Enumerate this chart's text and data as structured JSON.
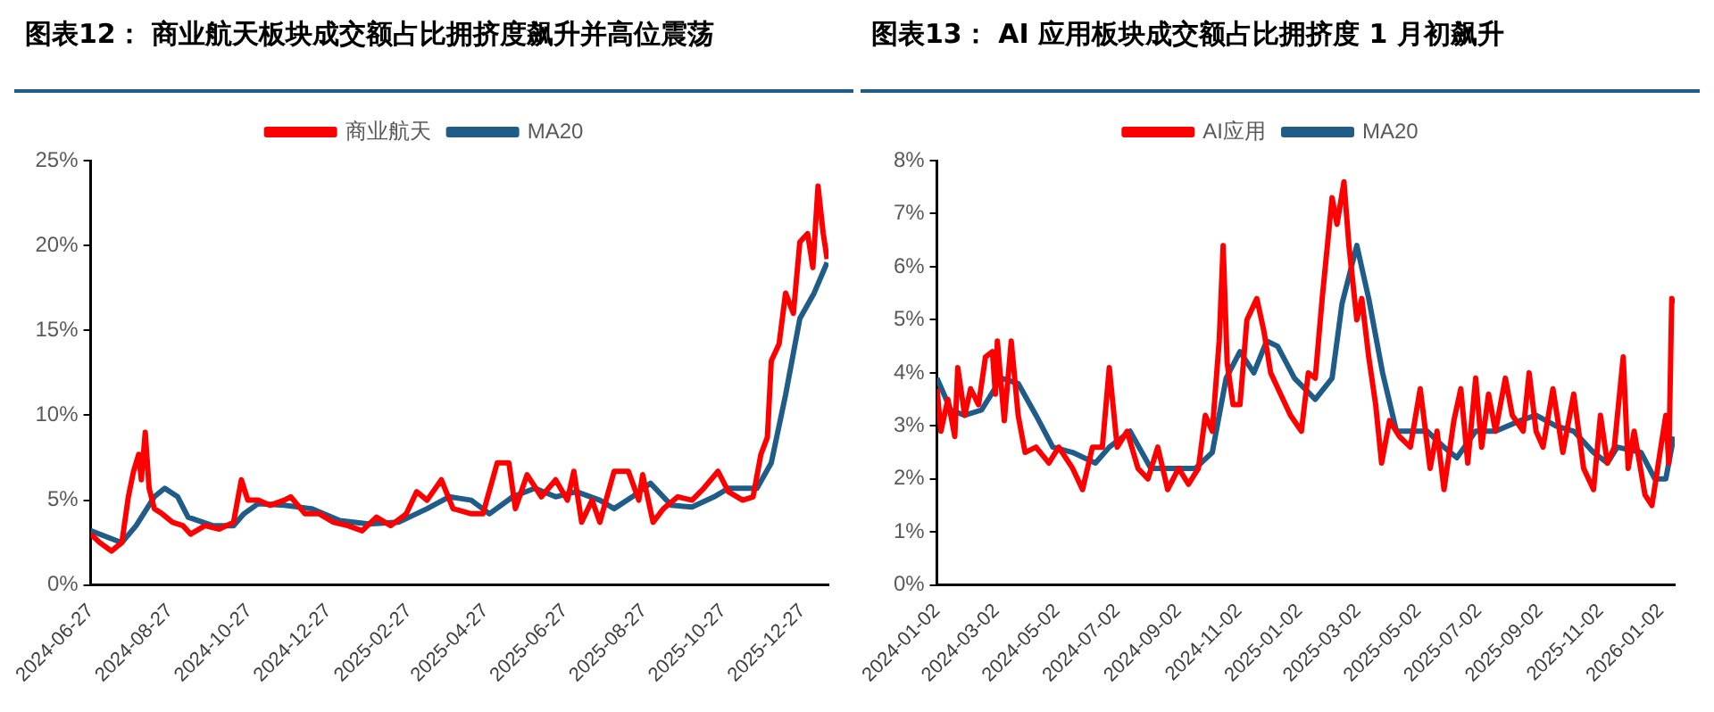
{
  "chart_data": [
    {
      "type": "line",
      "title": "图表12： 商业航天板块成交额占比拥挤度飙升并高位震荡",
      "legend": "top",
      "grid": false,
      "xlim": [
        "2024-06-27",
        "2026-01-16"
      ],
      "xticks": [
        "2024-06-27",
        "2024-08-27",
        "2024-10-27",
        "2024-12-27",
        "2025-02-27",
        "2025-04-27",
        "2025-06-27",
        "2025-08-27",
        "2025-10-27",
        "2025-12-27"
      ],
      "ylim": [
        0,
        25
      ],
      "yticks": [
        {
          "value": 0,
          "label": "0%"
        },
        {
          "value": 5,
          "label": "5%"
        },
        {
          "value": 10,
          "label": "10%"
        },
        {
          "value": 15,
          "label": "15%"
        },
        {
          "value": 20,
          "label": "20%"
        },
        {
          "value": 25,
          "label": "25%"
        }
      ],
      "series": [
        {
          "name": "商业航天",
          "color": "#ff0000",
          "x": [
            "2024-06-27",
            "2024-07-04",
            "2024-07-13",
            "2024-07-21",
            "2024-07-26",
            "2024-07-30",
            "2024-08-03",
            "2024-08-05",
            "2024-08-08",
            "2024-08-11",
            "2024-08-15",
            "2024-08-21",
            "2024-08-29",
            "2024-09-06",
            "2024-09-12",
            "2024-09-23",
            "2024-10-04",
            "2024-10-15",
            "2024-10-21",
            "2024-10-26",
            "2024-11-03",
            "2024-11-12",
            "2024-11-23",
            "2024-11-28",
            "2024-12-09",
            "2024-12-20",
            "2024-12-31",
            "2025-01-11",
            "2025-01-22",
            "2025-02-02",
            "2025-02-13",
            "2025-02-25",
            "2025-03-05",
            "2025-03-13",
            "2025-03-24",
            "2025-04-02",
            "2025-04-16",
            "2025-04-25",
            "2025-05-06",
            "2025-05-15",
            "2025-05-20",
            "2025-05-29",
            "2025-06-09",
            "2025-06-20",
            "2025-06-29",
            "2025-07-04",
            "2025-07-10",
            "2025-07-18",
            "2025-07-24",
            "2025-08-04",
            "2025-08-15",
            "2025-08-23",
            "2025-08-26",
            "2025-09-03",
            "2025-09-11",
            "2025-09-22",
            "2025-10-03",
            "2025-10-12",
            "2025-10-23",
            "2025-10-31",
            "2025-11-11",
            "2025-11-19",
            "2025-11-25",
            "2025-11-30",
            "2025-12-03",
            "2025-12-09",
            "2025-12-14",
            "2025-12-20",
            "2025-12-25",
            "2025-12-31",
            "2026-01-04",
            "2026-01-08",
            "2026-01-12",
            "2026-01-15"
          ],
          "values": [
            3.0,
            2.5,
            2.0,
            2.5,
            5.2,
            6.7,
            7.7,
            6.2,
            9.0,
            5.7,
            4.5,
            4.2,
            3.7,
            3.5,
            3.0,
            3.5,
            3.3,
            3.7,
            6.2,
            5.0,
            5.0,
            4.7,
            5.0,
            5.2,
            4.2,
            4.2,
            3.7,
            3.5,
            3.2,
            4.0,
            3.5,
            4.2,
            5.5,
            5.0,
            6.2,
            4.5,
            4.2,
            4.2,
            7.2,
            7.2,
            4.5,
            6.5,
            5.2,
            6.2,
            5.0,
            6.7,
            3.7,
            5.0,
            3.7,
            6.7,
            6.7,
            5.0,
            6.5,
            3.7,
            4.5,
            5.2,
            5.0,
            5.7,
            6.7,
            5.5,
            5.0,
            5.2,
            7.7,
            8.7,
            13.2,
            14.2,
            17.2,
            16.0,
            20.2,
            20.7,
            18.7,
            23.5,
            20.7,
            19.2
          ]
        },
        {
          "name": "MA20",
          "color": "#1f5c87",
          "x": [
            "2024-06-27",
            "2024-07-21",
            "2024-08-01",
            "2024-08-15",
            "2024-08-23",
            "2024-09-02",
            "2024-09-10",
            "2024-09-29",
            "2024-10-15",
            "2024-10-23",
            "2024-11-03",
            "2024-11-23",
            "2024-12-14",
            "2025-01-05",
            "2025-01-27",
            "2025-02-19",
            "2025-03-13",
            "2025-03-30",
            "2025-04-16",
            "2025-04-30",
            "2025-05-18",
            "2025-06-04",
            "2025-06-20",
            "2025-07-06",
            "2025-07-24",
            "2025-08-04",
            "2025-08-18",
            "2025-09-01",
            "2025-09-17",
            "2025-10-03",
            "2025-10-20",
            "2025-10-31",
            "2025-11-22",
            "2025-12-03",
            "2025-12-14",
            "2025-12-25",
            "2026-01-05",
            "2026-01-15"
          ],
          "values": [
            3.2,
            2.5,
            3.5,
            5.2,
            5.7,
            5.2,
            4.0,
            3.5,
            3.5,
            4.2,
            4.8,
            4.7,
            4.5,
            3.8,
            3.6,
            3.7,
            4.5,
            5.2,
            5.0,
            4.2,
            5.2,
            5.7,
            5.2,
            5.5,
            5.0,
            4.5,
            5.2,
            6.0,
            4.7,
            4.6,
            5.2,
            5.7,
            5.7,
            7.2,
            11.2,
            15.7,
            17.2,
            19.0
          ]
        }
      ]
    },
    {
      "type": "line",
      "title": "图表13： AI 应用板块成交额占比拥挤度 1 月初飙升",
      "legend": "top",
      "grid": false,
      "xlim": [
        "2024-01-02",
        "2026-01-16"
      ],
      "xticks": [
        "2024-01-02",
        "2024-03-02",
        "2024-05-02",
        "2024-07-02",
        "2024-09-02",
        "2024-11-02",
        "2025-01-02",
        "2025-03-02",
        "2025-05-02",
        "2025-07-02",
        "2025-09-02",
        "2025-11-02",
        "2026-01-02"
      ],
      "ylim": [
        0,
        8
      ],
      "yticks": [
        {
          "value": 0,
          "label": "0%"
        },
        {
          "value": 1,
          "label": "1%"
        },
        {
          "value": 2,
          "label": "2%"
        },
        {
          "value": 3,
          "label": "3%"
        },
        {
          "value": 4,
          "label": "4%"
        },
        {
          "value": 5,
          "label": "5%"
        },
        {
          "value": 6,
          "label": "6%"
        },
        {
          "value": 7,
          "label": "7%"
        },
        {
          "value": 8,
          "label": "8%"
        }
      ],
      "series": [
        {
          "name": "AI应用",
          "color": "#ff0000",
          "x": [
            "2024-01-02",
            "2024-01-06",
            "2024-01-13",
            "2024-01-20",
            "2024-01-23",
            "2024-01-30",
            "2024-02-05",
            "2024-02-13",
            "2024-02-20",
            "2024-02-27",
            "2024-03-01",
            "2024-03-03",
            "2024-03-10",
            "2024-03-17",
            "2024-03-24",
            "2024-03-31",
            "2024-04-11",
            "2024-04-24",
            "2024-05-04",
            "2024-05-18",
            "2024-05-28",
            "2024-06-07",
            "2024-06-17",
            "2024-06-24",
            "2024-07-02",
            "2024-07-12",
            "2024-07-23",
            "2024-08-02",
            "2024-08-12",
            "2024-08-22",
            "2024-09-02",
            "2024-09-12",
            "2024-09-22",
            "2024-09-29",
            "2024-10-06",
            "2024-10-13",
            "2024-10-17",
            "2024-10-21",
            "2024-10-27",
            "2024-11-03",
            "2024-11-10",
            "2024-11-20",
            "2024-11-27",
            "2024-12-04",
            "2024-12-14",
            "2024-12-24",
            "2025-01-04",
            "2025-01-11",
            "2025-01-18",
            "2025-01-25",
            "2025-02-04",
            "2025-02-09",
            "2025-02-16",
            "2025-02-21",
            "2025-03-01",
            "2025-03-06",
            "2025-03-13",
            "2025-03-20",
            "2025-03-26",
            "2025-04-03",
            "2025-04-13",
            "2025-04-24",
            "2025-05-04",
            "2025-05-14",
            "2025-05-21",
            "2025-05-28",
            "2025-06-07",
            "2025-06-14",
            "2025-06-21",
            "2025-06-29",
            "2025-07-05",
            "2025-07-12",
            "2025-07-19",
            "2025-07-29",
            "2025-08-05",
            "2025-08-16",
            "2025-08-22",
            "2025-08-29",
            "2025-09-05",
            "2025-09-15",
            "2025-09-25",
            "2025-10-06",
            "2025-10-16",
            "2025-10-26",
            "2025-11-02",
            "2025-11-09",
            "2025-11-16",
            "2025-11-25",
            "2025-11-30",
            "2025-12-06",
            "2025-12-17",
            "2025-12-24",
            "2026-01-02",
            "2026-01-07",
            "2026-01-10",
            "2026-01-13",
            "2026-01-15"
          ],
          "values": [
            3.7,
            2.9,
            3.5,
            2.8,
            4.1,
            3.2,
            3.7,
            3.4,
            4.3,
            4.4,
            3.6,
            4.6,
            3.1,
            4.6,
            3.2,
            2.5,
            2.6,
            2.3,
            2.6,
            2.2,
            1.8,
            2.6,
            2.6,
            4.1,
            2.6,
            2.9,
            2.2,
            2.0,
            2.6,
            1.8,
            2.2,
            1.9,
            2.2,
            3.2,
            2.9,
            4.6,
            6.4,
            4.2,
            3.4,
            3.4,
            5.0,
            5.4,
            4.8,
            4.0,
            3.6,
            3.2,
            2.9,
            4.0,
            3.9,
            5.4,
            7.3,
            6.8,
            7.6,
            6.4,
            5.0,
            5.4,
            4.3,
            3.4,
            2.3,
            3.1,
            2.8,
            2.6,
            3.7,
            2.2,
            2.9,
            1.8,
            3.1,
            3.7,
            2.3,
            3.9,
            2.6,
            3.6,
            2.9,
            3.9,
            3.2,
            2.9,
            4.0,
            2.9,
            2.6,
            3.7,
            2.5,
            3.6,
            2.2,
            1.8,
            3.2,
            2.3,
            2.6,
            4.3,
            2.2,
            2.9,
            1.7,
            1.5,
            2.6,
            3.2,
            2.3,
            5.4,
            5.3
          ]
        },
        {
          "name": "MA20",
          "color": "#1f5c87",
          "x": [
            "2024-01-02",
            "2024-01-16",
            "2024-01-30",
            "2024-02-16",
            "2024-03-07",
            "2024-03-24",
            "2024-04-11",
            "2024-04-28",
            "2024-05-18",
            "2024-06-10",
            "2024-06-24",
            "2024-07-15",
            "2024-08-05",
            "2024-08-26",
            "2024-09-19",
            "2024-10-06",
            "2024-10-20",
            "2024-11-03",
            "2024-11-17",
            "2024-11-30",
            "2024-12-11",
            "2024-12-28",
            "2025-01-18",
            "2025-02-04",
            "2025-02-14",
            "2025-03-01",
            "2025-03-13",
            "2025-03-27",
            "2025-04-10",
            "2025-04-24",
            "2025-05-11",
            "2025-05-28",
            "2025-06-10",
            "2025-06-29",
            "2025-07-19",
            "2025-08-13",
            "2025-08-29",
            "2025-09-18",
            "2025-10-06",
            "2025-10-26",
            "2025-11-09",
            "2025-11-19",
            "2025-12-13",
            "2025-12-27",
            "2026-01-07",
            "2026-01-15"
          ],
          "values": [
            3.9,
            3.3,
            3.2,
            3.3,
            3.9,
            3.8,
            3.2,
            2.6,
            2.5,
            2.3,
            2.6,
            2.9,
            2.2,
            2.2,
            2.2,
            2.5,
            3.9,
            4.4,
            4.0,
            4.6,
            4.5,
            3.9,
            3.5,
            3.9,
            5.3,
            6.4,
            5.4,
            4.0,
            2.9,
            2.9,
            2.9,
            2.6,
            2.4,
            2.9,
            2.9,
            3.1,
            3.2,
            3.0,
            2.9,
            2.5,
            2.3,
            2.6,
            2.5,
            2.0,
            2.0,
            2.8
          ]
        }
      ]
    }
  ]
}
